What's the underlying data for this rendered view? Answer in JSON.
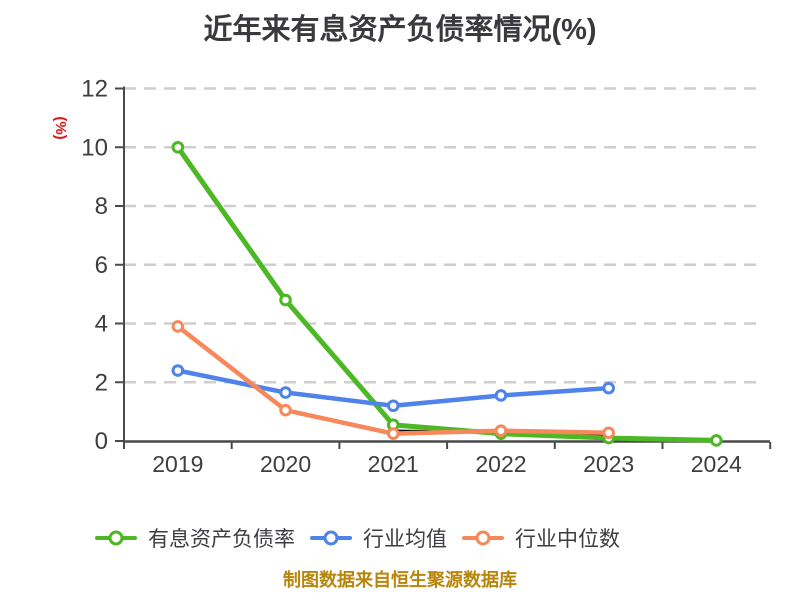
{
  "page": {
    "background": "#ffffff"
  },
  "title": {
    "text": "近年来有息资产负债率情况(%)",
    "color": "#3a3a3e"
  },
  "footer": {
    "text": "制图数据来自恒生聚源数据库",
    "color": "#b8860b"
  },
  "chart_data": {
    "type": "line",
    "title": "近年来有息资产负债率情况(%)",
    "ylabel": "(%)",
    "ylabel_color": "#e01212",
    "categories": [
      "2019",
      "2020",
      "2021",
      "2022",
      "2023",
      "2024"
    ],
    "y_ticks": [
      "0",
      "2",
      "4",
      "6",
      "8",
      "10",
      "12"
    ],
    "ylim": [
      0,
      12
    ],
    "grid": "horizontal-dashed",
    "grid_color": "#cfcfcf",
    "axis_color": "#4a4a4a",
    "tick_label_color": "#3d3d42",
    "legend_position": "bottom",
    "marker_style": "circle-white-fill",
    "series": [
      {
        "name": "有息资产负债率",
        "color": "#4bb824",
        "line_width": 5,
        "values": [
          10.0,
          4.8,
          0.55,
          0.25,
          0.1,
          0.02
        ],
        "in_legend": true
      },
      {
        "name": "行业均值",
        "color": "#5082eb",
        "line_width": 4.5,
        "values": [
          2.4,
          1.65,
          1.2,
          1.55,
          1.8,
          null
        ],
        "in_legend": true
      },
      {
        "name": "行业中位数",
        "color": "#f6885c",
        "line_width": 4.5,
        "values": [
          3.9,
          1.05,
          0.25,
          0.35,
          0.28,
          null
        ],
        "in_legend": true
      },
      {
        "name": "unlabeled_black_overlap",
        "color": "#111111",
        "line_width": 2.5,
        "values": [
          null,
          null,
          0.35,
          0.3,
          0.18,
          null
        ],
        "in_legend": false
      }
    ]
  }
}
